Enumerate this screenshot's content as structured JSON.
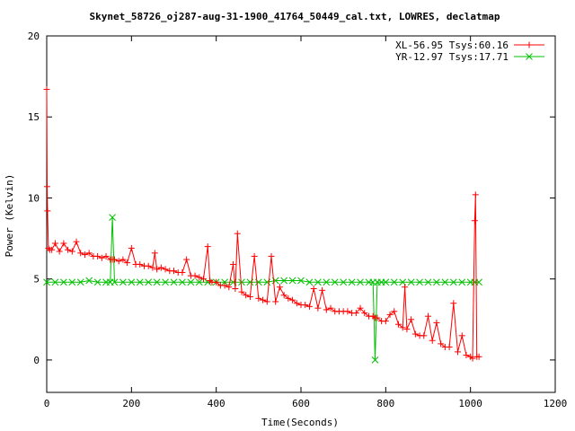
{
  "chart_data": {
    "type": "line",
    "title": "Skynet_58726_oj287-aug-31-1900_41764_50449_cal.txt, LOWRES, declatmap",
    "xlabel": "Time(Seconds)",
    "ylabel": "Power (Kelvin)",
    "xlim": [
      0,
      1200
    ],
    "ylim": [
      -2,
      20
    ],
    "xticks": [
      0,
      200,
      400,
      600,
      800,
      1000,
      1200
    ],
    "yticks": [
      0,
      5,
      10,
      15,
      20
    ],
    "xtick_labels": [
      "0",
      "200",
      "400",
      "600",
      "800",
      "1000",
      "1200"
    ],
    "ytick_labels": [
      "0",
      "5",
      "10",
      "15",
      "20"
    ],
    "grid": false,
    "legend_position": "top-right",
    "series": [
      {
        "name": "XL-56.95 Tsys:60.16",
        "color": "#ff0000",
        "marker": "plus",
        "x": [
          0,
          1,
          2,
          4,
          7,
          12,
          20,
          30,
          40,
          50,
          60,
          70,
          80,
          90,
          100,
          110,
          120,
          130,
          140,
          150,
          155,
          160,
          170,
          180,
          190,
          200,
          210,
          220,
          230,
          240,
          250,
          255,
          260,
          270,
          280,
          290,
          300,
          310,
          320,
          330,
          340,
          350,
          360,
          370,
          380,
          385,
          390,
          400,
          410,
          420,
          430,
          440,
          445,
          450,
          460,
          470,
          480,
          490,
          500,
          510,
          520,
          530,
          540,
          550,
          560,
          570,
          580,
          590,
          600,
          610,
          620,
          630,
          640,
          650,
          660,
          670,
          680,
          690,
          700,
          710,
          720,
          730,
          740,
          750,
          760,
          770,
          775,
          780,
          790,
          800,
          810,
          820,
          830,
          840,
          845,
          850,
          860,
          870,
          880,
          890,
          900,
          910,
          920,
          930,
          940,
          950,
          960,
          970,
          980,
          990,
          1000,
          1005,
          1010,
          1012,
          1015,
          1020
        ],
        "y": [
          16.7,
          10.7,
          9.2,
          6.9,
          6.8,
          6.8,
          7.2,
          6.7,
          7.2,
          6.8,
          6.7,
          7.3,
          6.6,
          6.5,
          6.6,
          6.4,
          6.4,
          6.3,
          6.4,
          6.2,
          6.2,
          6.2,
          6.1,
          6.2,
          6.0,
          6.9,
          5.9,
          5.9,
          5.8,
          5.8,
          5.7,
          6.6,
          5.6,
          5.7,
          5.6,
          5.5,
          5.5,
          5.4,
          5.4,
          6.2,
          5.2,
          5.2,
          5.1,
          5.0,
          7.0,
          4.9,
          4.8,
          4.8,
          4.6,
          4.6,
          4.5,
          5.9,
          4.4,
          7.8,
          4.2,
          4.0,
          3.9,
          6.4,
          3.8,
          3.7,
          3.6,
          6.4,
          3.6,
          4.5,
          4.0,
          3.8,
          3.7,
          3.5,
          3.4,
          3.4,
          3.3,
          4.4,
          3.2,
          4.3,
          3.1,
          3.2,
          3.0,
          3.0,
          3.0,
          3.0,
          2.9,
          2.9,
          3.2,
          2.9,
          2.7,
          2.7,
          2.6,
          2.6,
          2.4,
          2.4,
          2.8,
          3.0,
          2.2,
          2.0,
          4.5,
          1.9,
          2.5,
          1.6,
          1.5,
          1.5,
          2.7,
          1.2,
          2.3,
          1.0,
          0.8,
          0.8,
          3.5,
          0.5,
          1.5,
          0.3,
          0.2,
          0.1,
          8.6,
          10.2,
          0.2,
          0.2
        ]
      },
      {
        "name": "YR-12.97 Tsys:17.71",
        "color": "#00c000",
        "marker": "cross",
        "x": [
          0,
          20,
          40,
          60,
          80,
          100,
          120,
          140,
          150,
          155,
          160,
          180,
          200,
          220,
          240,
          260,
          280,
          300,
          320,
          340,
          360,
          380,
          400,
          420,
          440,
          460,
          480,
          500,
          520,
          540,
          560,
          580,
          600,
          620,
          640,
          660,
          680,
          700,
          720,
          740,
          760,
          770,
          775,
          780,
          790,
          800,
          820,
          840,
          860,
          880,
          900,
          920,
          940,
          960,
          980,
          1000,
          1010,
          1020
        ],
        "y": [
          4.8,
          4.8,
          4.8,
          4.8,
          4.8,
          4.9,
          4.8,
          4.8,
          4.8,
          8.8,
          4.8,
          4.8,
          4.8,
          4.8,
          4.8,
          4.8,
          4.8,
          4.8,
          4.8,
          4.8,
          4.8,
          4.8,
          4.8,
          4.8,
          4.8,
          4.8,
          4.8,
          4.8,
          4.8,
          4.9,
          4.9,
          4.9,
          4.9,
          4.8,
          4.8,
          4.8,
          4.8,
          4.8,
          4.8,
          4.8,
          4.8,
          4.8,
          0.0,
          4.8,
          4.8,
          4.8,
          4.8,
          4.8,
          4.8,
          4.8,
          4.8,
          4.8,
          4.8,
          4.8,
          4.8,
          4.8,
          4.8,
          4.8
        ]
      }
    ]
  }
}
